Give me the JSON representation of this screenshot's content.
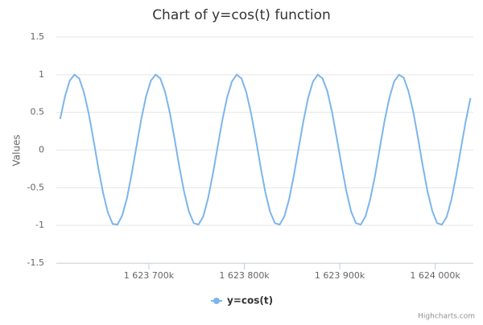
{
  "chart_data": {
    "type": "line",
    "title": "Chart of y=cos(t) function",
    "y_label": "Values",
    "x": [
      1623607000,
      1623612000,
      1623617000,
      1623622000,
      1623627000,
      1623632000,
      1623637000,
      1623642000,
      1623647000,
      1623652000,
      1623657000,
      1623662000,
      1623667000,
      1623672000,
      1623677000,
      1623682000,
      1623687000,
      1623692000,
      1623697000,
      1623702000,
      1623707000,
      1623712000,
      1623717000,
      1623722000,
      1623727000,
      1623732000,
      1623737000,
      1623742000,
      1623747000,
      1623752000,
      1623757000,
      1623762000,
      1623767000,
      1623772000,
      1623777000,
      1623782000,
      1623787000,
      1623792000,
      1623797000,
      1623802000,
      1623807000,
      1623812000,
      1623817000,
      1623822000,
      1623827000,
      1623832000,
      1623837000,
      1623842000,
      1623847000,
      1623852000,
      1623857000,
      1623862000,
      1623867000,
      1623872000,
      1623877000,
      1623882000,
      1623887000,
      1623892000,
      1623897000,
      1623902000,
      1623907000,
      1623912000,
      1623917000,
      1623922000,
      1623927000,
      1623932000,
      1623937000,
      1623942000,
      1623947000,
      1623952000,
      1623957000,
      1623962000,
      1623967000,
      1623972000,
      1623977000,
      1623982000,
      1623987000,
      1623992000,
      1623997000,
      1624002000,
      1624007000,
      1624012000,
      1624017000,
      1624022000,
      1624027000,
      1624032000,
      1624037000
    ],
    "series": [
      {
        "name": "y=cos(t)",
        "color": "#7cb5ec",
        "values": [
          0.41,
          0.71,
          0.92,
          1.0,
          0.95,
          0.76,
          0.48,
          0.13,
          -0.24,
          -0.57,
          -0.83,
          -0.98,
          -0.99,
          -0.87,
          -0.64,
          -0.31,
          0.05,
          0.41,
          0.71,
          0.92,
          1.0,
          0.95,
          0.77,
          0.49,
          0.14,
          -0.23,
          -0.56,
          -0.82,
          -0.97,
          -0.99,
          -0.88,
          -0.64,
          -0.32,
          0.04,
          0.4,
          0.7,
          0.91,
          1.0,
          0.95,
          0.77,
          0.49,
          0.15,
          -0.22,
          -0.56,
          -0.82,
          -0.97,
          -0.99,
          -0.88,
          -0.65,
          -0.33,
          0.03,
          0.39,
          0.7,
          0.91,
          1.0,
          0.95,
          0.78,
          0.5,
          0.15,
          -0.21,
          -0.55,
          -0.82,
          -0.97,
          -0.99,
          -0.88,
          -0.65,
          -0.34,
          0.03,
          0.39,
          0.69,
          0.91,
          1.0,
          0.96,
          0.78,
          0.51,
          0.16,
          -0.21,
          -0.55,
          -0.81,
          -0.97,
          -0.99,
          -0.89,
          -0.66,
          -0.34,
          0.02,
          0.38,
          0.69
        ]
      }
    ],
    "xlim": [
      1623603000,
      1624040000
    ],
    "xticks": [
      {
        "value": 1623700000,
        "label": "1 623 700k"
      },
      {
        "value": 1623800000,
        "label": "1 623 800k"
      },
      {
        "value": 1623900000,
        "label": "1 623 900k"
      },
      {
        "value": 1624000000,
        "label": "1 624 000k"
      }
    ],
    "ylim": [
      -1.5,
      1.5
    ],
    "yticks": [
      -1.5,
      -1,
      -0.5,
      0,
      0.5,
      1,
      1.5
    ],
    "grid": true,
    "credits": "Highcharts.com"
  }
}
